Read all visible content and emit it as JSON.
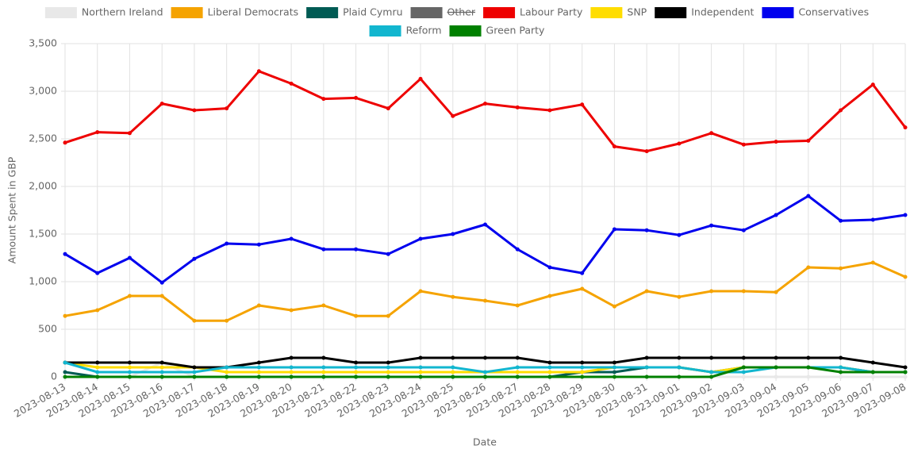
{
  "chart_data": {
    "type": "line",
    "x_label": "Date",
    "y_label": "Amount Spent in GBP",
    "x": [
      "2023-08-13",
      "2023-08-14",
      "2023-08-15",
      "2023-08-16",
      "2023-08-17",
      "2023-08-18",
      "2023-08-19",
      "2023-08-20",
      "2023-08-21",
      "2023-08-22",
      "2023-08-23",
      "2023-08-24",
      "2023-08-25",
      "2023-08-26",
      "2023-08-27",
      "2023-08-28",
      "2023-08-29",
      "2023-08-30",
      "2023-08-31",
      "2023-09-01",
      "2023-09-02",
      "2023-09-03",
      "2023-09-04",
      "2023-09-05",
      "2023-09-06",
      "2023-09-07",
      "2023-09-08"
    ],
    "ylim": [
      0,
      3500
    ],
    "yticks": [
      0,
      {
        "value": 500,
        "label": "500"
      },
      {
        "value": 1000,
        "label": "1,000"
      },
      {
        "value": 1500,
        "label": "1,500"
      },
      {
        "value": 2000,
        "label": "2,000"
      },
      {
        "value": 2500,
        "label": "2,500"
      },
      {
        "value": 3000,
        "label": "3,000"
      },
      {
        "value": 3500,
        "label": "3,500"
      }
    ],
    "grid": true,
    "legend": "top",
    "series": [
      {
        "name": "Northern Ireland",
        "color": "#e8e8e8",
        "values": [
          0,
          0,
          0,
          150,
          0,
          0,
          0,
          0,
          0,
          0,
          0,
          0,
          0,
          0,
          0,
          0,
          0,
          0,
          0,
          0,
          0,
          0,
          0,
          0,
          0,
          0,
          0
        ]
      },
      {
        "name": "Liberal Democrats",
        "color": "#f5a300",
        "values": [
          640,
          700,
          850,
          850,
          590,
          590,
          750,
          700,
          750,
          640,
          640,
          900,
          840,
          800,
          750,
          850,
          925,
          740,
          900,
          840,
          900,
          900,
          890,
          1150,
          1140,
          1200,
          1050
        ]
      },
      {
        "name": "Plaid Cymru",
        "color": "#005b54",
        "values": [
          50,
          0,
          0,
          0,
          0,
          0,
          0,
          0,
          0,
          0,
          0,
          0,
          0,
          0,
          0,
          0,
          50,
          50,
          100,
          100,
          50,
          100,
          100,
          100,
          100,
          50,
          50
        ]
      },
      {
        "name": "Other",
        "color": "#666666",
        "hidden": true
      },
      {
        "name": "Labour Party",
        "color": "#ee0000",
        "values": [
          2460,
          2570,
          2560,
          2870,
          2800,
          2820,
          3210,
          3080,
          2920,
          2930,
          2820,
          3130,
          2740,
          2870,
          2830,
          2800,
          2860,
          2420,
          2370,
          2450,
          2560,
          2440,
          2470,
          2480,
          2800,
          3070,
          2620
        ]
      },
      {
        "name": "SNP",
        "color": "#ffdd00",
        "values": [
          150,
          100,
          100,
          100,
          100,
          50,
          50,
          50,
          50,
          50,
          50,
          50,
          50,
          50,
          50,
          50,
          50,
          100,
          100,
          100,
          50,
          100,
          100,
          100,
          100,
          50,
          50
        ]
      },
      {
        "name": "Independent",
        "color": "#000000",
        "values": [
          150,
          150,
          150,
          150,
          100,
          100,
          150,
          200,
          200,
          150,
          150,
          200,
          200,
          200,
          200,
          150,
          150,
          150,
          200,
          200,
          200,
          200,
          200,
          200,
          200,
          150,
          100
        ]
      },
      {
        "name": "Conservatives",
        "color": "#0000ee",
        "values": [
          1290,
          1090,
          1250,
          990,
          1240,
          1400,
          1390,
          1450,
          1340,
          1340,
          1290,
          1450,
          1500,
          1600,
          1340,
          1150,
          1090,
          1550,
          1540,
          1490,
          1590,
          1540,
          1700,
          1900,
          1640,
          1650,
          1700
        ]
      },
      {
        "name": "Reform",
        "color": "#12b6cf",
        "values": [
          150,
          50,
          50,
          50,
          50,
          100,
          100,
          100,
          100,
          100,
          100,
          100,
          100,
          50,
          100,
          100,
          100,
          100,
          100,
          100,
          50,
          50,
          100,
          100,
          100,
          50,
          50
        ]
      },
      {
        "name": "Green Party",
        "color": "#008000",
        "values": [
          0,
          0,
          0,
          0,
          0,
          0,
          0,
          0,
          0,
          0,
          0,
          0,
          0,
          0,
          0,
          0,
          0,
          0,
          0,
          0,
          0,
          100,
          100,
          100,
          50,
          50,
          50
        ]
      }
    ]
  }
}
